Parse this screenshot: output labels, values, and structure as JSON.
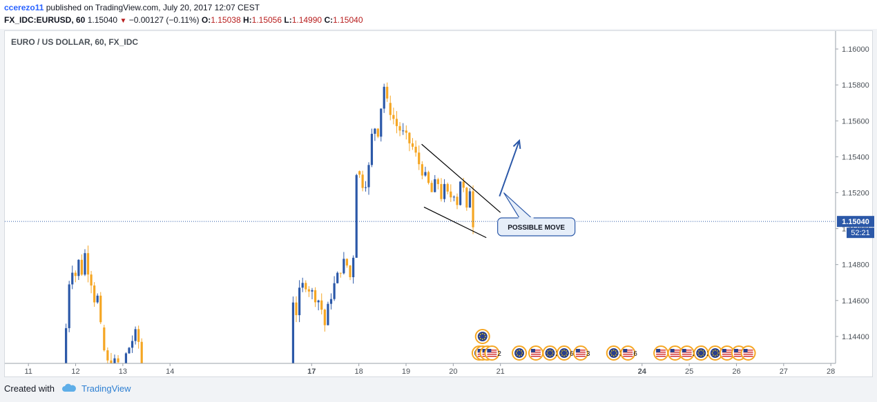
{
  "header": {
    "author": "ccerezo11",
    "published_text": "published on TradingView.com, July 20, 2017 12:07 CEST",
    "symbol": "FX_IDC:EURUSD, 60",
    "last_price": "1.15040",
    "change": "−0.00127 (−0.11%)",
    "open_label": "O:",
    "open": "1.15038",
    "high_label": "H:",
    "high": "1.15056",
    "low_label": "L:",
    "low": "1.14990",
    "close_label": "C:",
    "close": "1.15040"
  },
  "chart_title": "EURO / US DOLLAR, 60, FX_IDC",
  "annotation": {
    "label": "POSSIBLE MOVE"
  },
  "footer": {
    "created_with": "Created with",
    "brand": "TradingView"
  },
  "colors": {
    "up": "#2b58a8",
    "down": "#f5a623",
    "price_tag": "#2b58a8",
    "channel": "#000000",
    "arrow": "#2b58a8",
    "dotted_line": "#2b58a8"
  },
  "chart_data": {
    "type": "candlestick",
    "title": "EURO / US DOLLAR, 60, FX_IDC",
    "y_axis": {
      "min": 1.1425,
      "max": 1.161,
      "ticks": [
        "1.16000",
        "1.15800",
        "1.15600",
        "1.15400",
        "1.15200",
        "1.15000",
        "1.14800",
        "1.14600",
        "1.14400"
      ],
      "side": "right"
    },
    "x_axis": {
      "ticks": [
        "11",
        "12",
        "13",
        "14",
        "17",
        "18",
        "19",
        "20",
        "21",
        "24",
        "25",
        "26",
        "27",
        "28"
      ],
      "bold_ticks": [
        "17",
        "24"
      ],
      "range": [
        10.5,
        28.1
      ]
    },
    "last_price": {
      "value": 1.1504,
      "label": "1.15040",
      "countdown": "52:21"
    },
    "segments": [
      {
        "t0": 11.73,
        "t1": 12.53,
        "p": [
          [
            1.1425,
            0
          ],
          [
            1.1438,
            0.05
          ],
          [
            1.1448,
            0.1
          ],
          [
            1.1475,
            0.18
          ],
          [
            1.1478,
            0.25
          ],
          [
            1.1473,
            0.32
          ],
          [
            1.1482,
            0.42
          ],
          [
            1.1476,
            0.5
          ],
          [
            1.1488,
            0.6
          ],
          [
            1.1475,
            0.68
          ],
          [
            1.147,
            0.76
          ],
          [
            1.146,
            0.84
          ],
          [
            1.1465,
            0.9
          ],
          [
            1.1455,
            0.95
          ],
          [
            1.1445,
            1.0
          ]
        ]
      },
      {
        "t0": 12.53,
        "t1": 12.9,
        "p": [
          [
            1.1445,
            0
          ],
          [
            1.1432,
            0.2
          ],
          [
            1.1425,
            0.4
          ],
          [
            1.1426,
            0.6
          ],
          [
            1.1425,
            1.0
          ]
        ]
      },
      {
        "t0": 13.0,
        "t1": 13.4,
        "p": [
          [
            1.1425,
            0
          ],
          [
            1.1432,
            0.25
          ],
          [
            1.1438,
            0.5
          ],
          [
            1.1443,
            0.75
          ],
          [
            1.1425,
            1.0
          ]
        ]
      },
      {
        "t0": 16.54,
        "t1": 17.95,
        "p": [
          [
            1.1425,
            0
          ],
          [
            1.1462,
            0.04
          ],
          [
            1.1452,
            0.09
          ],
          [
            1.1466,
            0.15
          ],
          [
            1.147,
            0.22
          ],
          [
            1.1466,
            0.3
          ],
          [
            1.1462,
            0.38
          ],
          [
            1.146,
            0.44
          ],
          [
            1.1452,
            0.5
          ],
          [
            1.1445,
            0.53
          ],
          [
            1.1458,
            0.58
          ],
          [
            1.1468,
            0.66
          ],
          [
            1.1476,
            0.74
          ],
          [
            1.1482,
            0.82
          ],
          [
            1.1478,
            0.88
          ],
          [
            1.147,
            0.92
          ],
          [
            1.1482,
            0.95
          ],
          [
            1.1525,
            0.98
          ],
          [
            1.1532,
            1.0
          ]
        ]
      },
      {
        "t0": 17.95,
        "t1": 18.6,
        "p": [
          [
            1.1532,
            0
          ],
          [
            1.1528,
            0.15
          ],
          [
            1.1522,
            0.25
          ],
          [
            1.153,
            0.35
          ],
          [
            1.1538,
            0.45
          ],
          [
            1.1565,
            0.55
          ],
          [
            1.1548,
            0.65
          ],
          [
            1.1556,
            0.72
          ],
          [
            1.1568,
            0.8
          ],
          [
            1.158,
            0.88
          ],
          [
            1.1578,
            0.94
          ],
          [
            1.157,
            1.0
          ]
        ]
      },
      {
        "t0": 18.6,
        "t1": 20.42,
        "p": [
          [
            1.157,
            0
          ],
          [
            1.1558,
            0.1
          ],
          [
            1.1552,
            0.2
          ],
          [
            1.1545,
            0.3
          ],
          [
            1.1535,
            0.38
          ],
          [
            1.1528,
            0.45
          ],
          [
            1.152,
            0.52
          ],
          [
            1.1528,
            0.58
          ],
          [
            1.1518,
            0.63
          ],
          [
            1.1524,
            0.68
          ],
          [
            1.1515,
            0.72
          ],
          [
            1.1522,
            0.77
          ],
          [
            1.1513,
            0.81
          ],
          [
            1.153,
            0.86
          ],
          [
            1.1518,
            0.9
          ],
          [
            1.1508,
            0.93
          ],
          [
            1.1524,
            0.96
          ],
          [
            1.1503,
            1.0
          ]
        ]
      }
    ],
    "channel_lines": [
      {
        "from": [
          19.33,
          1.1547
        ],
        "to": [
          21.0,
          1.1509
        ]
      },
      {
        "from": [
          19.38,
          1.1512
        ],
        "to": [
          20.7,
          1.1495
        ]
      }
    ],
    "arrow": {
      "from": [
        20.98,
        1.1518
      ],
      "to": [
        21.4,
        1.1549
      ]
    },
    "callout": {
      "label": "POSSIBLE MOVE",
      "anchor": [
        21.07,
        1.152
      ],
      "box_center": [
        21.76,
        1.1501
      ]
    },
    "event_markers": [
      {
        "t": 20.62,
        "row": 2,
        "kind": "eu"
      },
      {
        "t": 20.55,
        "row": 1,
        "kind": "eu"
      },
      {
        "t": 20.62,
        "row": 1,
        "kind": "us",
        "count": "4"
      },
      {
        "t": 20.72,
        "row": 1,
        "kind": "us",
        "count": "3"
      },
      {
        "t": 20.82,
        "row": 1,
        "kind": "us",
        "count": "2"
      },
      {
        "t": 21.4,
        "row": 1,
        "kind": "eu"
      },
      {
        "t": 21.75,
        "row": 1,
        "kind": "us"
      },
      {
        "t": 22.05,
        "row": 1,
        "kind": "eu",
        "count": "2"
      },
      {
        "t": 22.35,
        "row": 1,
        "kind": "eu",
        "count": "6"
      },
      {
        "t": 22.7,
        "row": 1,
        "kind": "us",
        "count": "3"
      },
      {
        "t": 23.4,
        "row": 1,
        "kind": "eu",
        "count": "3"
      },
      {
        "t": 23.7,
        "row": 1,
        "kind": "us",
        "count": "6"
      },
      {
        "t": 24.4,
        "row": 1,
        "kind": "us"
      },
      {
        "t": 24.7,
        "row": 1,
        "kind": "us",
        "count": "6"
      },
      {
        "t": 24.95,
        "row": 1,
        "kind": "us",
        "count": "2"
      },
      {
        "t": 25.25,
        "row": 1,
        "kind": "eu",
        "count": "2"
      },
      {
        "t": 25.55,
        "row": 1,
        "kind": "eu"
      },
      {
        "t": 25.8,
        "row": 1,
        "kind": "us",
        "count": "10"
      },
      {
        "t": 26.05,
        "row": 1,
        "kind": "us",
        "count": "2"
      },
      {
        "t": 26.25,
        "row": 1,
        "kind": "us"
      }
    ]
  }
}
